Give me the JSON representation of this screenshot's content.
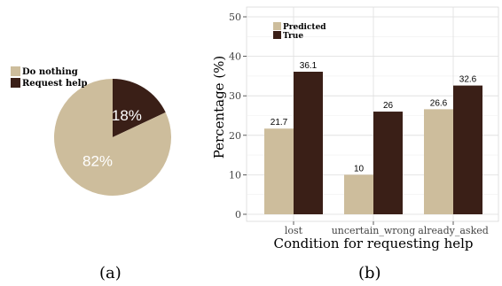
{
  "chart_data": [
    {
      "type": "pie",
      "panel_label": "(a)",
      "legend": [
        "Do nothing",
        "Request help"
      ],
      "legend_placement": "top-left",
      "slices": [
        {
          "name": "Do nothing",
          "value": 82,
          "label": "82%",
          "color": "#cdbd9c"
        },
        {
          "name": "Request help",
          "value": 18,
          "label": "18%",
          "color": "#3a1f17"
        }
      ]
    },
    {
      "type": "bar",
      "panel_label": "(b)",
      "xlabel": "Condition for requesting help",
      "ylabel": "Percentage (%)",
      "ylim": [
        0,
        50
      ],
      "yticks": [
        "0",
        "10",
        "20",
        "30",
        "40",
        "50"
      ],
      "grid": true,
      "legend_placement": "top-left",
      "categories": [
        "lost",
        "uncertain_wrong",
        "already_asked"
      ],
      "series": [
        {
          "name": "Predicted",
          "color": "#cdbd9c",
          "values": [
            21.7,
            10,
            26.6
          ],
          "labels": [
            "21.7",
            "10",
            "26.6"
          ]
        },
        {
          "name": "True",
          "color": "#3a1f17",
          "values": [
            36.1,
            26,
            32.6
          ],
          "labels": [
            "36.1",
            "26",
            "32.6"
          ]
        }
      ]
    }
  ]
}
